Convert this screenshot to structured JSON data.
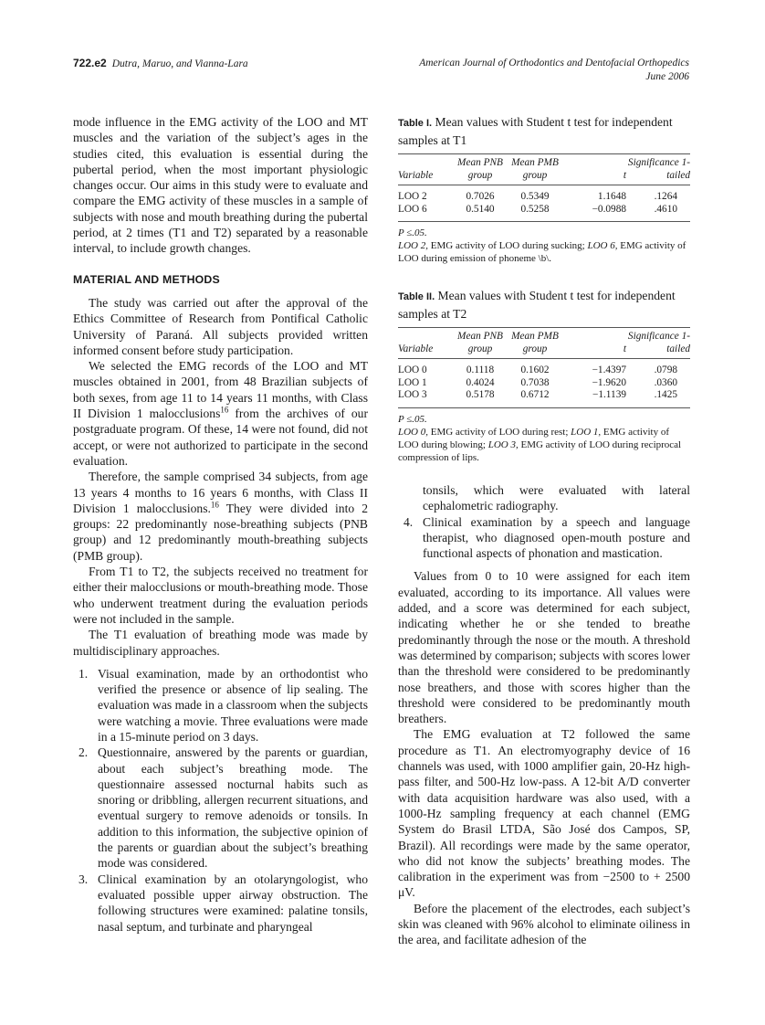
{
  "header": {
    "page_no": "722.e2",
    "authors": "Dutra, Maruo, and Vianna-Lara",
    "journal": "American Journal of Orthodontics and Dentofacial Orthopedics",
    "date": "June 2006"
  },
  "left": {
    "p1": "mode influence in the EMG activity of the LOO and MT muscles and the variation of the subject’s ages in the studies cited, this evaluation is essential during the pubertal period, when the most important physiologic changes occur. Our aims in this study were to evaluate and compare the EMG activity of these muscles in a sample of subjects with nose and mouth breathing during the pubertal period, at 2 times (T1 and T2) separated by a reasonable interval, to include growth changes.",
    "heading": "MATERIAL AND METHODS",
    "p2": "The study was carried out after the approval of the Ethics Committee of Research from Pontifical Catholic University of Paraná. All subjects provided written informed consent before study participation.",
    "p3a": "We selected the EMG records of the LOO and MT muscles obtained in 2001, from 48 Brazilian subjects of both sexes, from age 11 to 14 years 11 months, with Class II Division 1 malocclusions",
    "p3sup": "16",
    "p3b": " from the archives of our postgraduate program. Of these, 14 were not found, did not accept, or were not authorized to participate in the second evaluation.",
    "p4a": "Therefore, the sample comprised 34 subjects, from age 13 years 4 months to 16 years 6 months, with Class II Division 1 malocclusions.",
    "p4sup": "16",
    "p4b": " They were divided into 2 groups: 22 predominantly nose-breathing subjects (PNB group) and 12 predominantly mouth-breathing subjects (PMB group).",
    "p5": "From T1 to T2, the subjects received no treatment for either their malocclusions or mouth-breathing mode. Those who underwent treatment during the evaluation periods were not included in the sample.",
    "p6": "The T1 evaluation of breathing mode was made by multidisciplinary approaches.",
    "list": [
      {
        "n": "1.",
        "text": "Visual examination, made by an orthodontist who verified the presence or absence of lip sealing. The evaluation was made in a classroom when the subjects were watching a movie. Three evaluations were made in a 15-minute period on 3 days."
      },
      {
        "n": "2.",
        "text": "Questionnaire, answered by the parents or guardian, about each subject’s breathing mode. The questionnaire assessed nocturnal habits such as snoring or dribbling, allergen recurrent situations, and eventual surgery to remove adenoids or tonsils. In addition to this information, the subjective opinion of the parents or guardian about the subject’s breathing mode was considered."
      },
      {
        "n": "3.",
        "text": "Clinical examination by an otolaryngologist, who evaluated possible upper airway obstruction. The following structures were examined: palatine tonsils, nasal septum, and turbinate and pharyngeal"
      }
    ]
  },
  "right": {
    "cont": "tonsils, which were evaluated with lateral cephalometric radiography.",
    "item4": {
      "n": "4.",
      "text": "Clinical examination by a speech and language therapist, who diagnosed open-mouth posture and functional aspects of phonation and mastication."
    },
    "p1": "Values from 0 to 10 were assigned for each item evaluated, according to its importance. All values were added, and a score was determined for each subject, indicating whether he or she tended to breathe predominantly through the nose or the mouth. A threshold was determined by comparison; subjects with scores lower than the threshold were considered to be predominantly nose breathers, and those with scores higher than the threshold were considered to be predominantly mouth breathers.",
    "p2": "The EMG evaluation at T2 followed the same procedure as T1. An electromyography device of 16 channels was used, with 1000 amplifier gain, 20-Hz high-pass filter, and 500-Hz low-pass. A 12-bit A/D converter with data acquisition hardware was also used, with a 1000-Hz sampling frequency at each channel (EMG System do Brasil LTDA, São José dos Campos, SP, Brazil). All recordings were made by the same operator, who did not know the subjects’ breathing modes. The calibration in the experiment was from −2500 to + 2500 μV.",
    "p3": "Before the placement of the electrodes, each subject’s skin was cleaned with 96% alcohol to eliminate oiliness in the area, and facilitate adhesion of the"
  },
  "table1": {
    "label": "Table I.",
    "caption": " Mean values with Student t test for independent samples at T1",
    "headers": [
      "Variable",
      "Mean PNB group",
      "Mean PMB group",
      "t",
      "Significance 1-tailed"
    ],
    "rows": [
      [
        "LOO 2",
        "0.7026",
        "0.5349",
        "1.1648",
        ".1264"
      ],
      [
        "LOO 6",
        "0.5140",
        "0.5258",
        "−0.0988",
        ".4610"
      ]
    ],
    "p": "P ≤.05.",
    "n1": "LOO 2,",
    "t1": " EMG activity of LOO during sucking; ",
    "n2": "LOO 6,",
    "t2": " EMG activity of LOO during emission of phoneme \\b\\."
  },
  "table2": {
    "label": "Table II.",
    "caption": " Mean values with Student t test for independent samples at T2",
    "headers": [
      "Variable",
      "Mean PNB group",
      "Mean PMB group",
      "t",
      "Significance 1-tailed"
    ],
    "rows": [
      [
        "LOO 0",
        "0.1118",
        "0.1602",
        "−1.4397",
        ".0798"
      ],
      [
        "LOO 1",
        "0.4024",
        "0.7038",
        "−1.9620",
        ".0360"
      ],
      [
        "LOO 3",
        "0.5178",
        "0.6712",
        "−1.1139",
        ".1425"
      ]
    ],
    "p": "P ≤.05.",
    "n1": "LOO 0,",
    "t1": " EMG activity of LOO during rest; ",
    "n2": "LOO 1,",
    "t2": " EMG activity of LOO during blowing; ",
    "n3": "LOO 3,",
    "t3": " EMG activity of LOO during reciprocal compression of lips."
  }
}
